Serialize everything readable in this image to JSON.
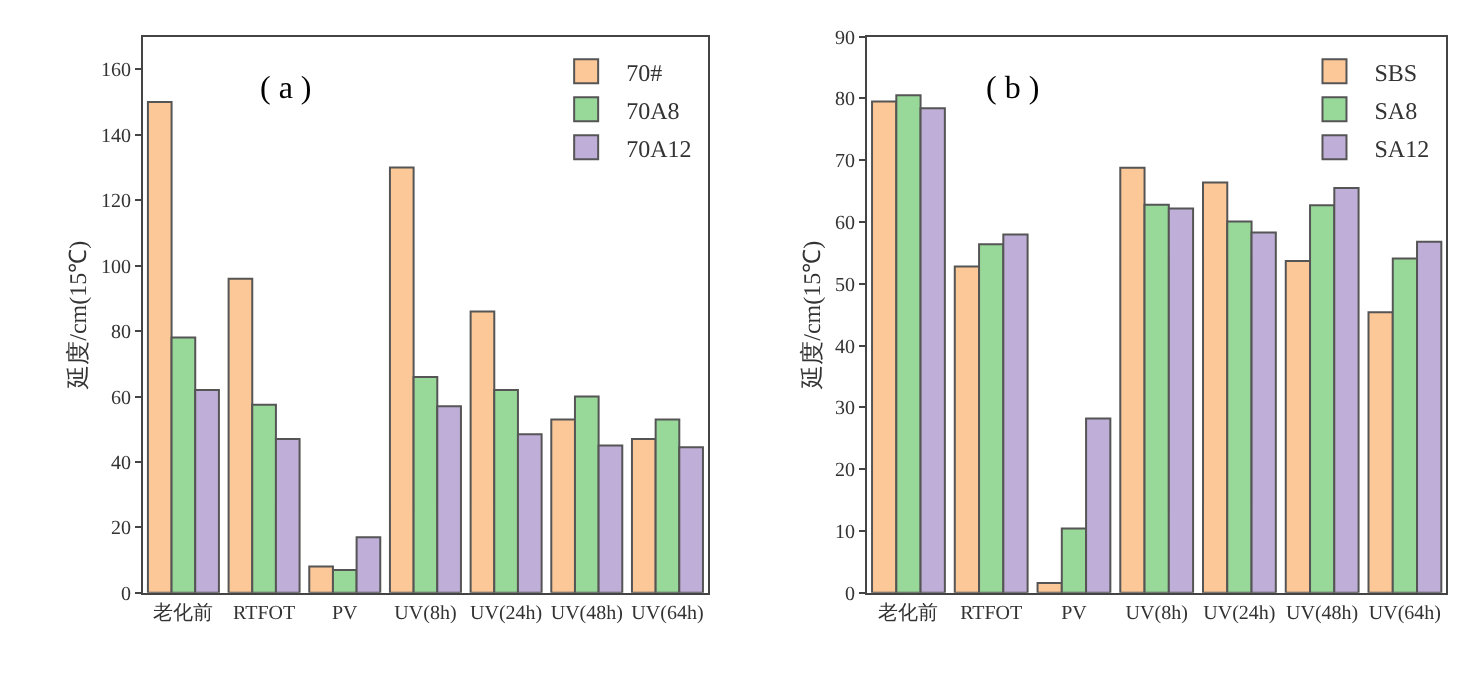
{
  "chart_data": [
    {
      "type": "bar",
      "ylabel": "延度/cm(15℃)",
      "annotations": [
        "( a )"
      ],
      "categories": [
        "老化前",
        "RTFOT",
        "PV",
        "UV(8h)",
        "UV(24h)",
        "UV(48h)",
        "UV(64h)"
      ],
      "series": [
        {
          "name": "70#",
          "color": "#fdc897",
          "values": [
            150,
            96,
            8,
            130,
            86,
            53,
            47
          ]
        },
        {
          "name": "70A8",
          "color": "#98d99a",
          "values": [
            78,
            57.5,
            7,
            66,
            62,
            60,
            53
          ]
        },
        {
          "name": "70A12",
          "color": "#bfaed8",
          "values": [
            62,
            47,
            17,
            57,
            48.5,
            45,
            44.5
          ]
        }
      ],
      "ylim": [
        0,
        170
      ],
      "yticks": [
        0,
        20,
        40,
        60,
        80,
        100,
        120,
        140,
        160
      ],
      "legend": "top right"
    },
    {
      "type": "bar",
      "ylabel": "延度/cm(15℃)",
      "annotations": [
        "( b )"
      ],
      "categories": [
        "老化前",
        "RTFOT",
        "PV",
        "UV(8h)",
        "UV(24h)",
        "UV(48h)",
        "UV(64h)"
      ],
      "series": [
        {
          "name": "SBS",
          "color": "#fdc897",
          "values": [
            79.5,
            52.8,
            1.6,
            68.8,
            66.4,
            53.7,
            45.4
          ]
        },
        {
          "name": "SA8",
          "color": "#98d99a",
          "values": [
            80.5,
            56.4,
            10.4,
            62.8,
            60.1,
            62.7,
            54.1
          ]
        },
        {
          "name": "SA12",
          "color": "#bfaed8",
          "values": [
            78.4,
            58,
            28.2,
            62.2,
            58.3,
            65.5,
            56.8
          ]
        }
      ],
      "ylim": [
        0,
        90
      ],
      "yticks": [
        0,
        10,
        20,
        30,
        40,
        50,
        60,
        70,
        80,
        90
      ],
      "legend": "top right"
    }
  ]
}
